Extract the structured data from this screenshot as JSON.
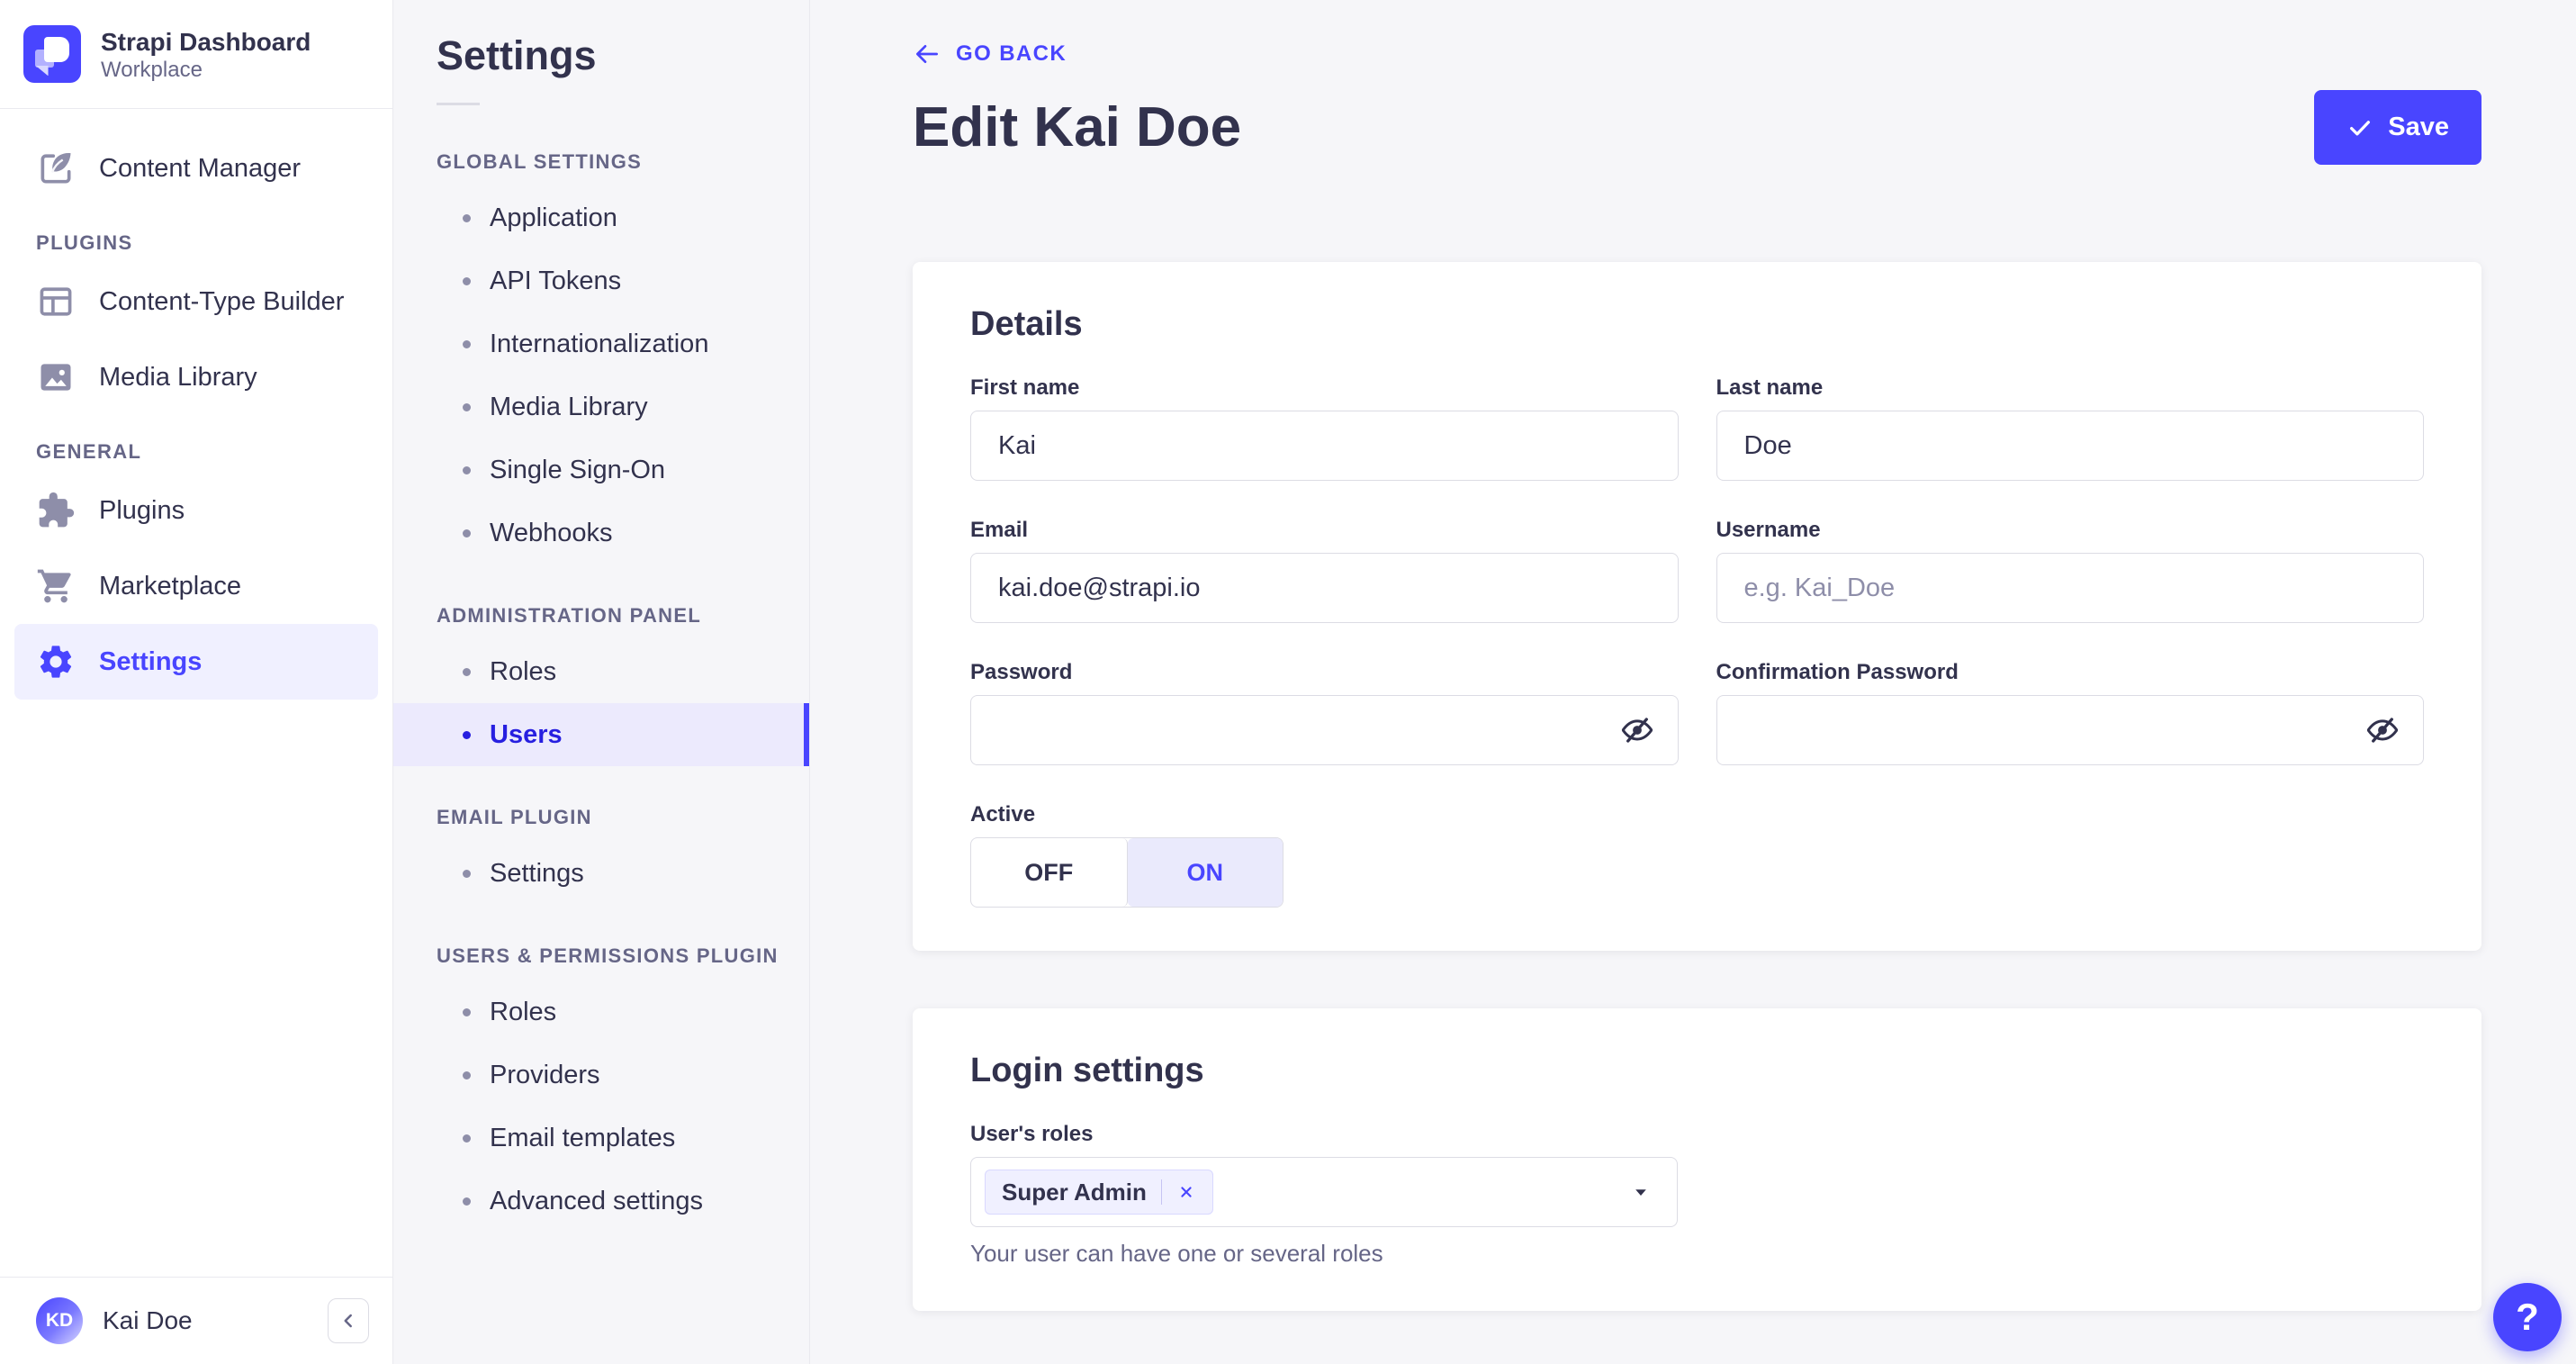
{
  "colors": {
    "primary": "#4945ff",
    "primary_dark": "#271fe0",
    "primary_light": "#f0f0ff",
    "text": "#32324d",
    "muted": "#666687",
    "placeholder": "#8e8ea9",
    "border": "#dcdce4",
    "divider": "#eaeaef",
    "background": "#f6f6f9"
  },
  "brand": {
    "title": "Strapi Dashboard",
    "subtitle": "Workplace",
    "logo_icon": "strapi-logo-icon"
  },
  "sidebar": {
    "content_manager": {
      "label": "Content Manager",
      "icon": "content-manager-icon"
    },
    "sections": [
      {
        "label": "PLUGINS",
        "items": [
          {
            "label": "Content-Type Builder",
            "icon": "content-type-builder-icon",
            "active": false
          },
          {
            "label": "Media Library",
            "icon": "media-library-icon",
            "active": false
          }
        ]
      },
      {
        "label": "GENERAL",
        "items": [
          {
            "label": "Plugins",
            "icon": "plugins-icon",
            "active": false
          },
          {
            "label": "Marketplace",
            "icon": "marketplace-icon",
            "active": false
          },
          {
            "label": "Settings",
            "icon": "settings-icon",
            "active": true
          }
        ]
      }
    ],
    "footer": {
      "initials": "KD",
      "name": "Kai Doe",
      "collapse_icon": "chevron-left-icon"
    }
  },
  "subnav": {
    "title": "Settings",
    "groups": [
      {
        "header": "GLOBAL SETTINGS",
        "items": [
          {
            "label": "Application",
            "active": false
          },
          {
            "label": "API Tokens",
            "active": false
          },
          {
            "label": "Internationalization",
            "active": false
          },
          {
            "label": "Media Library",
            "active": false
          },
          {
            "label": "Single Sign-On",
            "active": false
          },
          {
            "label": "Webhooks",
            "active": false
          }
        ]
      },
      {
        "header": "ADMINISTRATION PANEL",
        "items": [
          {
            "label": "Roles",
            "active": false
          },
          {
            "label": "Users",
            "active": true
          }
        ]
      },
      {
        "header": "EMAIL PLUGIN",
        "items": [
          {
            "label": "Settings",
            "active": false
          }
        ]
      },
      {
        "header": "USERS & PERMISSIONS PLUGIN",
        "items": [
          {
            "label": "Roles",
            "active": false
          },
          {
            "label": "Providers",
            "active": false
          },
          {
            "label": "Email templates",
            "active": false
          },
          {
            "label": "Advanced settings",
            "active": false
          }
        ]
      }
    ]
  },
  "header": {
    "back_label": "GO BACK",
    "title": "Edit Kai Doe",
    "save_label": "Save"
  },
  "details_card": {
    "title": "Details",
    "fields": {
      "first_name": {
        "label": "First name",
        "value": "Kai"
      },
      "last_name": {
        "label": "Last name",
        "value": "Doe"
      },
      "email": {
        "label": "Email",
        "value": "kai.doe@strapi.io"
      },
      "username": {
        "label": "Username",
        "value": "",
        "placeholder": "e.g. Kai_Doe"
      },
      "password": {
        "label": "Password",
        "value": ""
      },
      "confirmation_password": {
        "label": "Confirmation Password",
        "value": ""
      },
      "active": {
        "label": "Active",
        "off": "OFF",
        "on": "ON",
        "value": "ON"
      }
    }
  },
  "login_card": {
    "title": "Login settings",
    "roles": {
      "label": "User's roles",
      "selected_tag": "Super Admin",
      "hint": "Your user can have one or several roles"
    }
  },
  "help": {
    "label": "?"
  }
}
